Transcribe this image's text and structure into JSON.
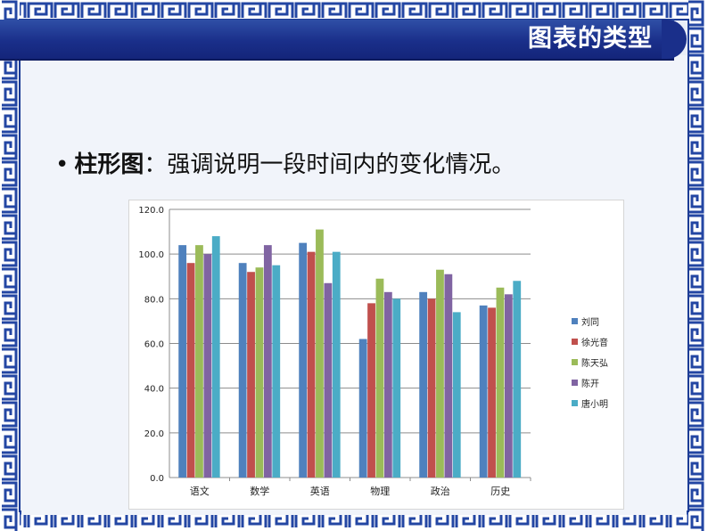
{
  "slide": {
    "title": "图表的类型",
    "bullet_symbol": "•",
    "bullet_term": "柱形图",
    "bullet_separator": "：",
    "bullet_text": "强调说明一段时间内的变化情况。"
  },
  "chart_data": {
    "type": "bar",
    "categories": [
      "语文",
      "数学",
      "英语",
      "物理",
      "政治",
      "历史"
    ],
    "series": [
      {
        "name": "刘同",
        "color": "#4f81bd",
        "values": [
          104,
          96,
          105,
          62,
          83,
          77
        ]
      },
      {
        "name": "徐光音",
        "color": "#c0504d",
        "values": [
          96,
          92,
          101,
          78,
          80,
          76
        ]
      },
      {
        "name": "陈天弘",
        "color": "#9bbb59",
        "values": [
          104,
          94,
          111,
          89,
          93,
          85
        ]
      },
      {
        "name": "陈开",
        "color": "#8064a2",
        "values": [
          100,
          104,
          87,
          83,
          91,
          82
        ]
      },
      {
        "name": "唐小明",
        "color": "#4bacc6",
        "values": [
          108,
          95,
          101,
          80,
          74,
          88
        ]
      }
    ],
    "ylim": [
      0,
      120
    ],
    "yticks": [
      "0.0",
      "20.0",
      "40.0",
      "60.0",
      "80.0",
      "100.0",
      "120.0"
    ],
    "grid": true,
    "legend": "right"
  }
}
